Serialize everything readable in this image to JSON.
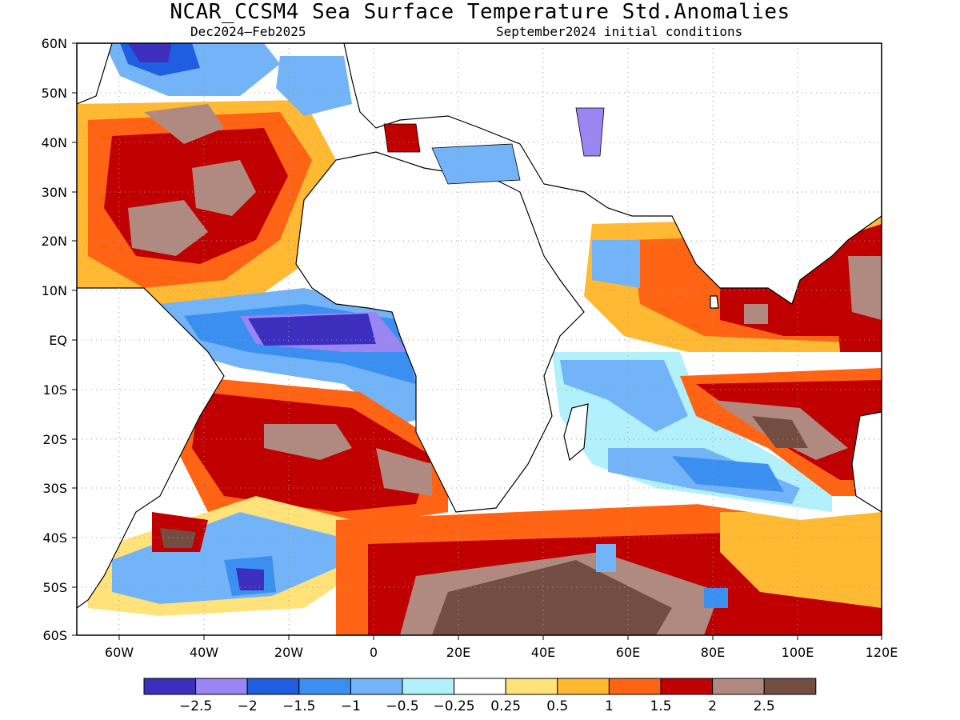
{
  "map": {
    "title": "NCAR_CCSM4 Sea Surface Temperature Std.Anomalies",
    "period": "Dec2024–Feb2025",
    "init": "September2024 initial conditions",
    "lat_labels": [
      "60N",
      "50N",
      "40N",
      "30N",
      "20N",
      "10N",
      "EQ",
      "10S",
      "20S",
      "30S",
      "40S",
      "50S",
      "60S"
    ],
    "lon_labels": [
      "60W",
      "40W",
      "20W",
      "0",
      "20E",
      "40E",
      "60E",
      "80E",
      "100E",
      "120E"
    ],
    "lon_range": [
      -70,
      120
    ],
    "lat_range": [
      -60,
      60
    ],
    "grid": "dotted",
    "colorbar": {
      "colors": [
        "#3c2fbe",
        "#9a86f2",
        "#1f5ee0",
        "#3b8ff0",
        "#72b4f7",
        "#b2f0fb",
        "#ffffff",
        "#ffe27a",
        "#ffb932",
        "#ff6414",
        "#c00000",
        "#b08a80",
        "#734d42"
      ],
      "labels": [
        "−2.5",
        "−2",
        "−1.5",
        "−1",
        "−0.5",
        "−0.25",
        "0.25",
        "0.5",
        "1",
        "1.5",
        "2",
        "2.5"
      ]
    },
    "icons": [
      "coastline-map"
    ]
  }
}
